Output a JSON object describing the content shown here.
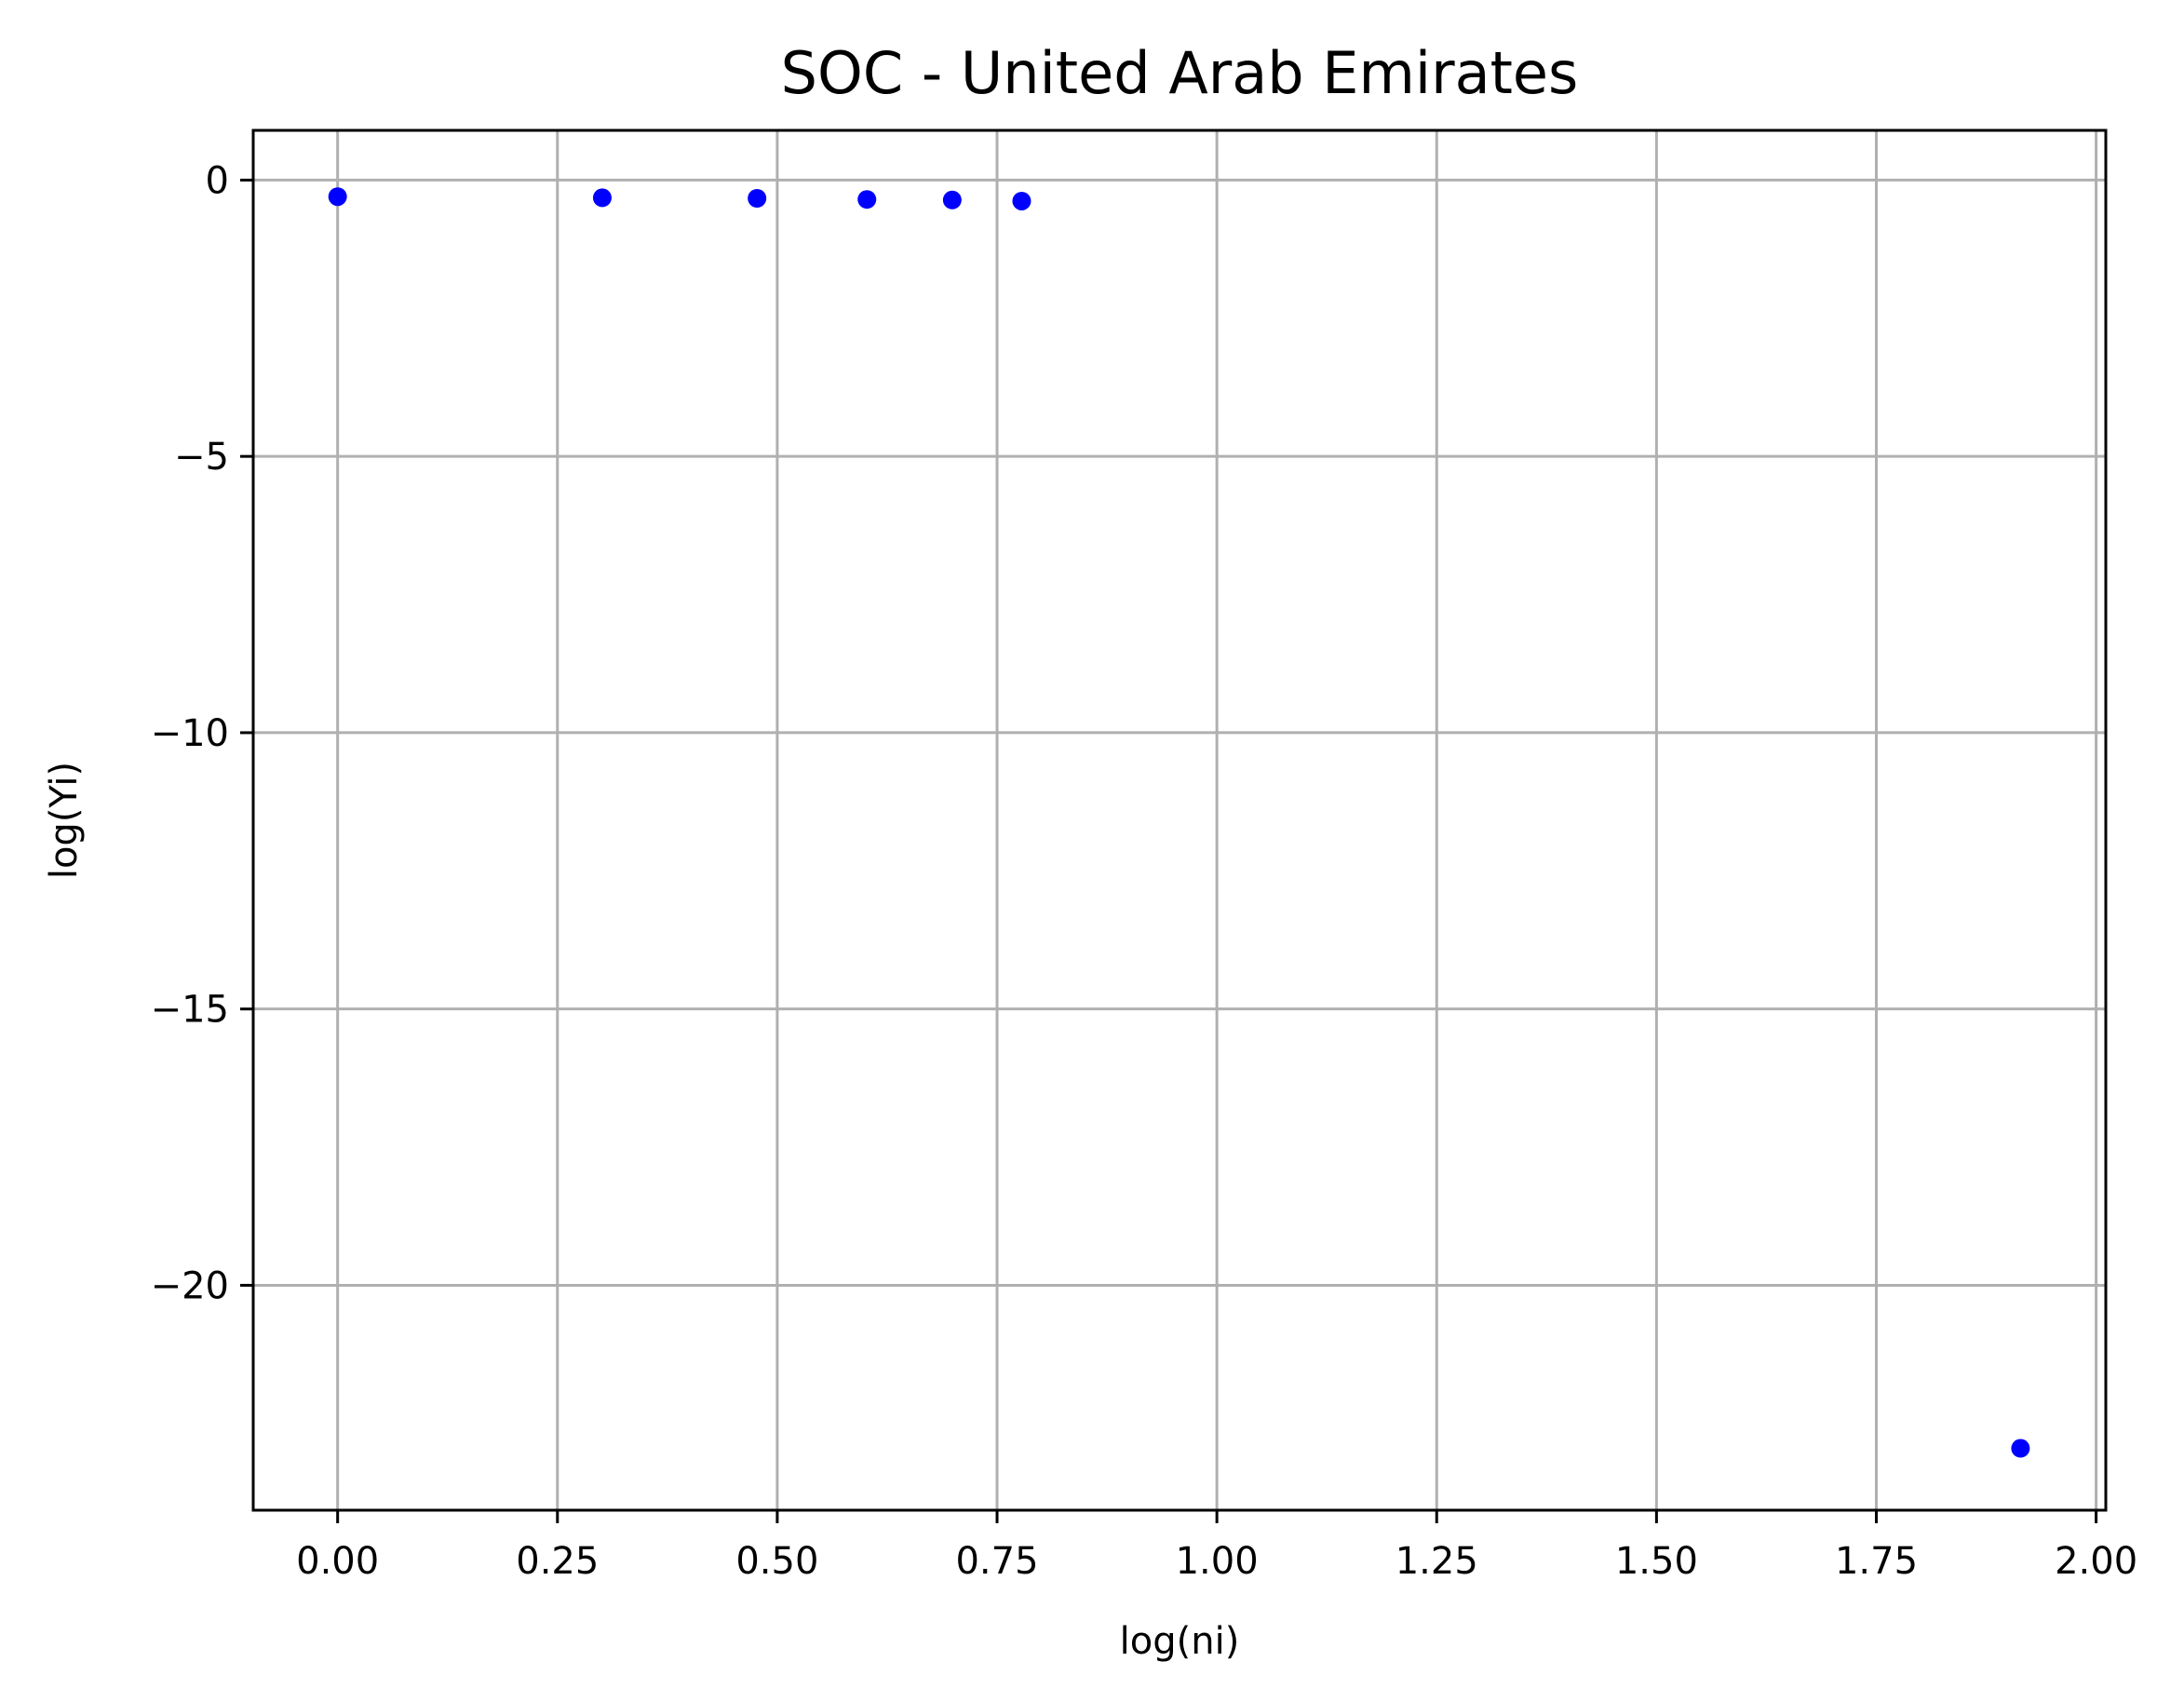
{
  "chart_data": {
    "type": "scatter",
    "title": "SOC - United Arab Emirates",
    "xlabel": "log(ni)",
    "ylabel": "log(Yi)",
    "xlim": [
      -0.096,
      2.011
    ],
    "ylim": [
      -24.07,
      0.9
    ],
    "xticks": [
      0.0,
      0.25,
      0.5,
      0.75,
      1.0,
      1.25,
      1.5,
      1.75,
      2.0
    ],
    "xtick_labels": [
      "0.00",
      "0.25",
      "0.50",
      "0.75",
      "1.00",
      "1.25",
      "1.50",
      "1.75",
      "2.00"
    ],
    "yticks": [
      0,
      -5,
      -10,
      -15,
      -20
    ],
    "ytick_labels": [
      "0",
      "−5",
      "−10",
      "−15",
      "−20"
    ],
    "grid": true,
    "marker_color": "#0000ff",
    "grid_color": "#b0b0b0",
    "series": [
      {
        "x": [
          0.0,
          0.301,
          0.477,
          0.602,
          0.699,
          0.778,
          1.914
        ],
        "y": [
          -0.3,
          -0.32,
          -0.33,
          -0.35,
          -0.36,
          -0.38,
          -22.95
        ]
      }
    ]
  }
}
